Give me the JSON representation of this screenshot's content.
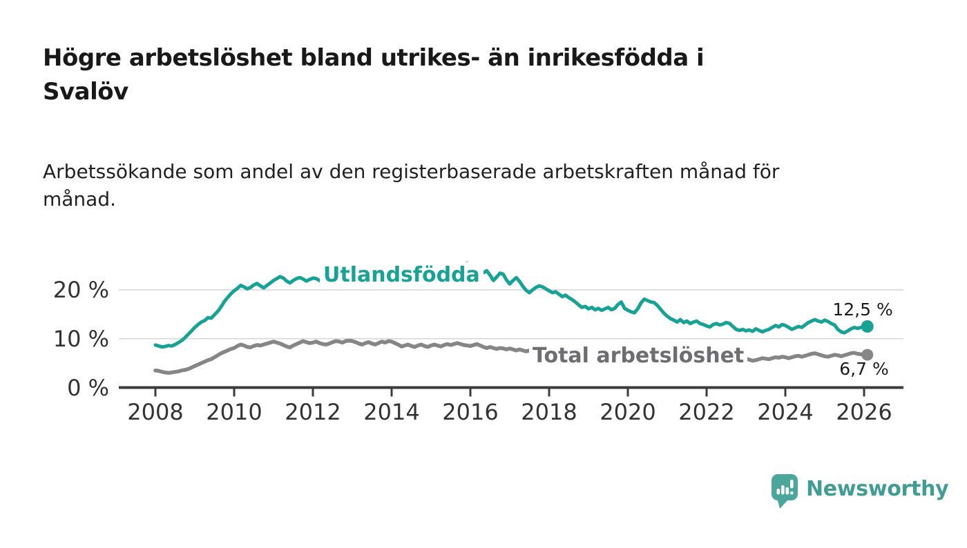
{
  "header": {
    "title_line1": "Högre arbetslöshet bland utrikes- än inrikesfödda i",
    "title_line2": "Svalöv",
    "subtitle_line1": "Arbetssökande som andel av den registerbaserade arbetskraften månad för",
    "subtitle_line2": "månad."
  },
  "chart_data": {
    "type": "line",
    "x_start": {
      "year": 2008,
      "month": 1
    },
    "x_interval": "monthly",
    "x_tick_labels": [
      "2008",
      "2010",
      "2012",
      "2014",
      "2016",
      "2018",
      "2020",
      "2022",
      "2024",
      "2026"
    ],
    "y_ticks": [
      {
        "value": 0,
        "label": "0 %"
      },
      {
        "value": 10,
        "label": "10 %"
      },
      {
        "value": 20,
        "label": "20 %"
      }
    ],
    "ylim": [
      0,
      28
    ],
    "grid": "horizontal-only",
    "legend_position": "inline-labels",
    "series": [
      {
        "name": "Utlandsfödda",
        "color": "#16a395",
        "end_label": "12,5 %",
        "last_value": 12.5,
        "values": [
          8.7,
          8.5,
          8.3,
          8.4,
          8.6,
          8.5,
          8.8,
          9.2,
          9.6,
          10.2,
          10.9,
          11.6,
          12.3,
          12.9,
          13.4,
          13.7,
          14.3,
          14.2,
          14.9,
          15.6,
          16.5,
          17.6,
          18.4,
          19.2,
          19.8,
          20.3,
          20.9,
          20.6,
          20.2,
          20.5,
          21.0,
          21.3,
          20.8,
          20.4,
          20.9,
          21.4,
          21.9,
          22.3,
          22.7,
          22.4,
          21.8,
          21.4,
          21.9,
          22.3,
          22.5,
          22.2,
          21.8,
          22.1,
          22.4,
          22.3,
          21.9,
          21.6,
          21.2,
          20.9,
          21.3,
          21.6,
          21.4,
          21.1,
          21.5,
          21.8,
          21.6,
          21.9,
          22.1,
          21.8,
          21.5,
          21.7,
          22.0,
          22.3,
          22.1,
          21.9,
          22.2,
          22.4,
          22.2,
          22.5,
          22.7,
          22.4,
          22.1,
          22.3,
          22.6,
          22.9,
          22.7,
          22.5,
          22.8,
          23.0,
          22.8,
          23.1,
          23.3,
          23.0,
          22.7,
          22.9,
          23.2,
          23.6,
          24.0,
          24.5,
          25.0,
          25.4,
          25.1,
          24.6,
          24.2,
          23.8,
          23.5,
          23.9,
          23.0,
          21.9,
          22.6,
          23.4,
          23.2,
          22.0,
          21.2,
          21.9,
          22.5,
          21.7,
          20.7,
          19.9,
          19.4,
          20.0,
          20.5,
          20.8,
          20.6,
          20.2,
          19.8,
          19.4,
          19.6,
          19.1,
          18.6,
          18.9,
          18.4,
          18.0,
          17.5,
          16.9,
          16.4,
          16.6,
          16.1,
          16.4,
          15.9,
          16.2,
          15.8,
          16.1,
          16.4,
          15.9,
          16.2,
          17.0,
          17.5,
          16.2,
          15.8,
          15.5,
          15.3,
          16.1,
          17.3,
          18.1,
          17.8,
          17.5,
          17.4,
          16.8,
          16.0,
          15.2,
          14.6,
          14.1,
          13.8,
          13.4,
          13.9,
          13.3,
          13.6,
          13.1,
          13.4,
          13.6,
          13.1,
          12.9,
          12.6,
          12.4,
          12.9,
          13.1,
          12.8,
          13.0,
          13.3,
          13.1,
          12.5,
          11.9,
          11.7,
          11.9,
          11.6,
          11.8,
          11.5,
          12.0,
          11.7,
          11.4,
          11.7,
          11.9,
          12.3,
          12.7,
          12.4,
          12.9,
          12.7,
          12.3,
          11.9,
          12.2,
          12.5,
          12.3,
          12.8,
          13.3,
          13.6,
          13.9,
          13.6,
          13.4,
          13.8,
          13.5,
          13.1,
          12.8,
          11.9,
          11.4,
          11.2,
          11.6,
          12.0,
          12.3,
          12.1,
          12.3,
          12.4,
          12.5
        ]
      },
      {
        "name": "Total arbetslöshet",
        "color": "#868686",
        "label_color": "#6e6e72",
        "end_label": "6,7 %",
        "last_value": 6.7,
        "values": [
          3.5,
          3.4,
          3.2,
          3.1,
          3.0,
          3.1,
          3.2,
          3.3,
          3.5,
          3.6,
          3.8,
          4.1,
          4.4,
          4.7,
          5.0,
          5.3,
          5.6,
          5.8,
          6.2,
          6.6,
          7.0,
          7.3,
          7.6,
          7.9,
          8.1,
          8.5,
          8.8,
          8.6,
          8.3,
          8.2,
          8.5,
          8.7,
          8.6,
          8.8,
          9.0,
          9.2,
          9.4,
          9.2,
          9.0,
          8.7,
          8.4,
          8.2,
          8.6,
          8.9,
          9.2,
          9.5,
          9.3,
          9.1,
          9.2,
          9.4,
          9.1,
          8.9,
          8.8,
          9.0,
          9.3,
          9.5,
          9.4,
          9.2,
          9.5,
          9.6,
          9.5,
          9.3,
          9.0,
          8.8,
          9.1,
          9.3,
          9.0,
          8.8,
          9.1,
          9.4,
          9.2,
          9.5,
          9.4,
          9.1,
          8.8,
          8.4,
          8.6,
          8.8,
          8.5,
          8.3,
          8.6,
          8.8,
          8.5,
          8.3,
          8.6,
          8.8,
          8.6,
          8.4,
          8.7,
          8.9,
          8.7,
          8.9,
          9.1,
          8.9,
          8.7,
          8.6,
          8.5,
          8.7,
          8.9,
          8.6,
          8.3,
          8.1,
          8.3,
          8.1,
          7.9,
          8.1,
          8.0,
          7.8,
          8.0,
          7.8,
          7.6,
          7.8,
          7.6,
          7.4,
          7.6,
          7.4,
          7.2,
          7.4,
          7.3,
          7.1,
          7.0,
          6.9,
          7.1,
          6.9,
          6.7,
          6.6,
          6.7,
          6.5,
          6.4,
          6.3,
          6.2,
          6.3,
          6.2,
          6.1,
          6.0,
          6.1,
          6.0,
          6.1,
          6.3,
          6.2,
          6.4,
          6.6,
          6.8,
          6.6,
          6.5,
          6.4,
          6.6,
          7.0,
          7.4,
          7.7,
          7.5,
          7.4,
          7.2,
          7.0,
          6.8,
          6.7,
          6.6,
          6.4,
          6.3,
          6.1,
          6.2,
          6.0,
          6.1,
          5.9,
          6.0,
          6.1,
          5.9,
          5.8,
          5.9,
          6.0,
          6.1,
          6.0,
          5.9,
          6.0,
          6.2,
          6.1,
          5.9,
          5.8,
          5.9,
          6.0,
          5.9,
          5.7,
          5.5,
          5.6,
          5.8,
          6.0,
          5.9,
          5.8,
          6.0,
          6.2,
          6.1,
          6.3,
          6.2,
          6.0,
          6.2,
          6.4,
          6.5,
          6.3,
          6.5,
          6.7,
          6.9,
          7.0,
          6.8,
          6.6,
          6.4,
          6.3,
          6.5,
          6.7,
          6.6,
          6.4,
          6.6,
          6.8,
          7.0,
          7.1,
          6.9,
          6.8,
          6.9,
          6.7
        ]
      }
    ]
  },
  "branding": {
    "wordmark": "Newsworthy",
    "logo_icon": "bar-chart-speech-bubble-icon",
    "logo_color": "#4ba79c",
    "wordmark_color": "#3f9d94"
  }
}
